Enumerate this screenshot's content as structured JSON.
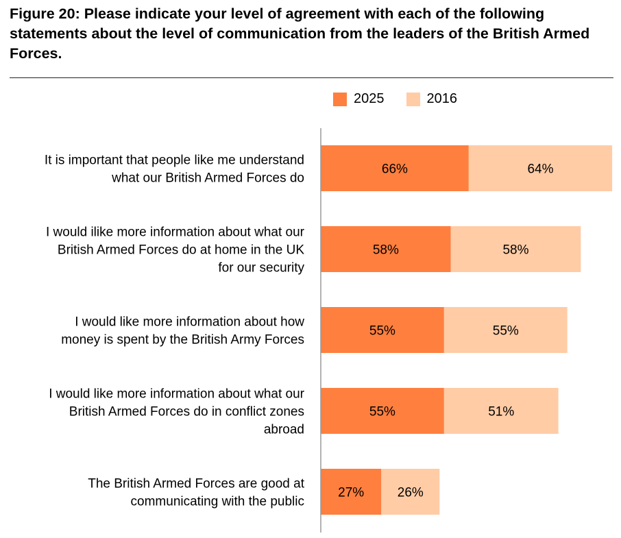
{
  "title": "Figure 20: Please indicate your level of agreement with each of the following statements about the level of communication from the leaders of the British Armed Forces.",
  "colors": {
    "s2025": "#FF7F3F",
    "s2016": "#FFCCA6",
    "axis": "#999999"
  },
  "chart_data": {
    "type": "bar",
    "orientation": "horizontal",
    "stacked": true,
    "legend": "top",
    "grid": false,
    "categories": [
      "It is important that people like me understand what our British Armed Forces do",
      "I would ilike more information about what our British Armed Forces do at home in the UK for our security",
      "I would like more information about how money is spent by the British Army Forces",
      "I would like more information about what our British Armed Forces do in conflict zones abroad",
      "The British Armed Forces are good at communicating with the public"
    ],
    "category_lines": [
      [
        "It is important that people like me understand",
        "what our British Armed Forces do"
      ],
      [
        "I would ilike more information about what our",
        "British Armed Forces do at home in the UK",
        "for our security"
      ],
      [
        "I would like more information about how",
        "money is spent by the British Army Forces"
      ],
      [
        "I would like more information about what our",
        "British Armed Forces do in conflict zones",
        "abroad"
      ],
      [
        "The British Armed Forces are good at",
        "communicating with the public"
      ]
    ],
    "series": [
      {
        "name": "2025",
        "values": [
          66,
          58,
          55,
          55,
          27
        ],
        "labels": [
          "66%",
          "58%",
          "55%",
          "55%",
          "27%"
        ]
      },
      {
        "name": "2016",
        "values": [
          64,
          58,
          55,
          51,
          26
        ],
        "labels": [
          "64%",
          "58%",
          "55%",
          "51%",
          "26%"
        ]
      }
    ]
  }
}
